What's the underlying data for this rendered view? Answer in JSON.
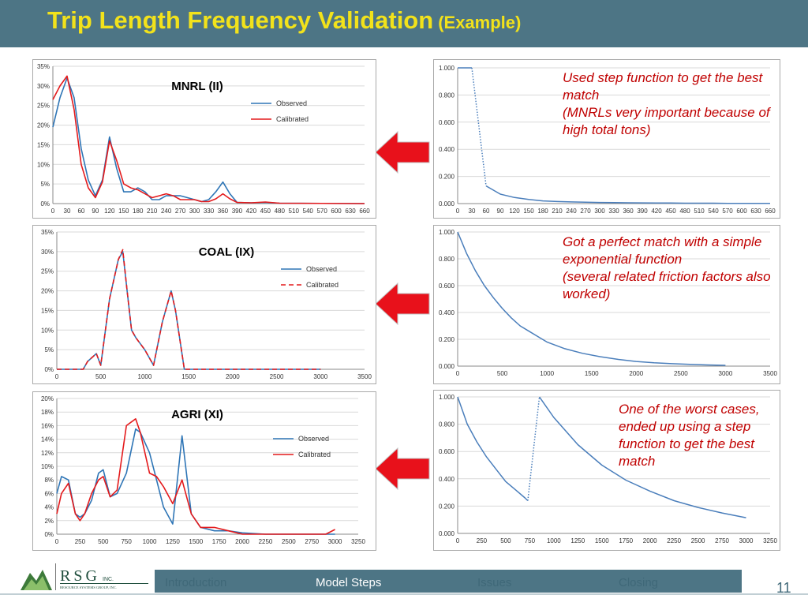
{
  "header": {
    "title": "Trip Length Frequency Validation",
    "subtitle": "(Example)"
  },
  "notes": [
    "Used step function to get the best match\n(MNRLs very important because of high total tons)",
    "Got a perfect match with a simple exponential function\n(several related friction factors also worked)",
    "One of the worst cases, ended up using a step function to get the best match"
  ],
  "footer": {
    "nav": [
      "Introduction",
      "Model Steps",
      "Issues",
      "Closing"
    ],
    "active_nav": "Model Steps",
    "page_number": "11",
    "logo_text": "RSG",
    "logo_inc": "INC.",
    "logo_sub": "RESOURCE SYSTEMS GROUP, INC."
  },
  "colors": {
    "observed": "#2e75b6",
    "calibrated": "#e41a1c",
    "friction": "#4a7ebb",
    "header": "#4d7585",
    "title": "#f2e21b",
    "note": "#c00000",
    "arrow": "#e8111b"
  },
  "chart_data": [
    {
      "type": "line",
      "title": "MNRL (II)",
      "xticks": [
        "0",
        "30",
        "60",
        "90",
        "120",
        "150",
        "180",
        "210",
        "240",
        "270",
        "300",
        "330",
        "360",
        "390",
        "420",
        "450",
        "480",
        "510",
        "540",
        "570",
        "600",
        "630",
        "660"
      ],
      "yticks": [
        "0%",
        "5%",
        "10%",
        "15%",
        "20%",
        "25%",
        "30%",
        "35%"
      ],
      "xlim": [
        0,
        660
      ],
      "ylim": [
        0,
        35
      ],
      "legend": "right",
      "series": [
        {
          "name": "Observed",
          "style": "solid",
          "x": [
            0,
            15,
            30,
            45,
            60,
            75,
            90,
            105,
            120,
            135,
            150,
            165,
            180,
            195,
            210,
            225,
            240,
            255,
            270,
            285,
            300,
            315,
            330,
            345,
            360,
            375,
            390,
            420,
            450,
            480,
            660
          ],
          "y": [
            19.5,
            27,
            32,
            27,
            14,
            6,
            2,
            6,
            17,
            9,
            3,
            3,
            4,
            3,
            1,
            1,
            2,
            2,
            2,
            1.5,
            1,
            0.5,
            1,
            3,
            5.5,
            2.5,
            0.3,
            0.2,
            0.3,
            0.1,
            0
          ]
        },
        {
          "name": "Calibrated",
          "style": "solid",
          "x": [
            0,
            15,
            30,
            45,
            60,
            75,
            90,
            105,
            120,
            135,
            150,
            165,
            180,
            195,
            210,
            225,
            240,
            255,
            270,
            285,
            300,
            315,
            330,
            345,
            360,
            375,
            390,
            420,
            450,
            480,
            660
          ],
          "y": [
            26.5,
            30,
            32.5,
            24,
            10,
            4,
            1.5,
            5.5,
            16,
            11,
            5,
            4,
            3.5,
            2.5,
            1.5,
            2,
            2.5,
            2,
            1,
            1,
            1,
            0.5,
            0.5,
            1.2,
            2.5,
            1.2,
            0.3,
            0.2,
            0.4,
            0.1,
            0
          ]
        }
      ]
    },
    {
      "type": "line",
      "title": "COAL (IX)",
      "xticks": [
        "0",
        "500",
        "1000",
        "1500",
        "2000",
        "2500",
        "3000",
        "3500"
      ],
      "yticks": [
        "0%",
        "5%",
        "10%",
        "15%",
        "20%",
        "25%",
        "30%",
        "35%"
      ],
      "xlim": [
        0,
        3500
      ],
      "ylim": [
        0,
        35
      ],
      "legend": "right",
      "series": [
        {
          "name": "Observed",
          "style": "solid",
          "x": [
            0,
            150,
            300,
            350,
            450,
            500,
            600,
            700,
            750,
            800,
            850,
            900,
            1000,
            1100,
            1200,
            1300,
            1350,
            1450,
            1500,
            2000,
            2500,
            3000
          ],
          "y": [
            0,
            0,
            0,
            2,
            4,
            1,
            18,
            28,
            30,
            20,
            10,
            8,
            5,
            1,
            12,
            20,
            15,
            0,
            0,
            0,
            0,
            0
          ]
        },
        {
          "name": "Calibrated",
          "style": "dashed",
          "x": [
            0,
            150,
            300,
            350,
            450,
            500,
            600,
            700,
            750,
            800,
            850,
            900,
            1000,
            1100,
            1200,
            1300,
            1350,
            1450,
            1500,
            2000,
            2500,
            3000
          ],
          "y": [
            0,
            0,
            0,
            2,
            4,
            1,
            18,
            28,
            30.5,
            20,
            10,
            8,
            5,
            1,
            12,
            20,
            15,
            0,
            0,
            0,
            0,
            0
          ]
        }
      ]
    },
    {
      "type": "line",
      "title": "AGRI (XI)",
      "xticks": [
        "0",
        "250",
        "500",
        "750",
        "1000",
        "1250",
        "1500",
        "1750",
        "2000",
        "2250",
        "2500",
        "2750",
        "3000",
        "3250"
      ],
      "yticks": [
        "0%",
        "2%",
        "4%",
        "6%",
        "8%",
        "10%",
        "12%",
        "14%",
        "16%",
        "18%",
        "20%"
      ],
      "xlim": [
        0,
        3250
      ],
      "ylim": [
        0,
        20
      ],
      "legend": "right",
      "series": [
        {
          "name": "Observed",
          "style": "solid",
          "x": [
            0,
            50,
            125,
            200,
            250,
            300,
            375,
            450,
            500,
            575,
            650,
            750,
            850,
            900,
            1000,
            1075,
            1150,
            1250,
            1350,
            1450,
            1550,
            1700,
            1850,
            2000,
            2250,
            2500,
            2750,
            3000
          ],
          "y": [
            6,
            8.5,
            8,
            3,
            2.5,
            3,
            5,
            9,
            9.5,
            5.5,
            6,
            9,
            15.5,
            15,
            12,
            8,
            4,
            1.5,
            14.5,
            3,
            1,
            0.5,
            0.5,
            0.2,
            0,
            0,
            0,
            0
          ]
        },
        {
          "name": "Calibrated",
          "style": "solid",
          "x": [
            0,
            50,
            125,
            200,
            250,
            300,
            375,
            450,
            500,
            575,
            650,
            750,
            850,
            900,
            1000,
            1075,
            1150,
            1250,
            1350,
            1450,
            1550,
            1700,
            1850,
            2000,
            2250,
            2500,
            2750,
            2900,
            3000
          ],
          "y": [
            3,
            6,
            7.5,
            3,
            2,
            3,
            6,
            8,
            8.5,
            5.5,
            6.5,
            16,
            17,
            15,
            9,
            8.5,
            7,
            4.5,
            8,
            3,
            1,
            1,
            0.5,
            0,
            0,
            0,
            0,
            0,
            0.7
          ]
        }
      ]
    },
    {
      "type": "line",
      "title": "",
      "xticks": [
        "0",
        "30",
        "60",
        "90",
        "120",
        "150",
        "180",
        "210",
        "240",
        "270",
        "300",
        "330",
        "360",
        "390",
        "420",
        "450",
        "480",
        "510",
        "540",
        "570",
        "600",
        "630",
        "660"
      ],
      "yticks": [
        "0.000",
        "0.200",
        "0.400",
        "0.600",
        "0.800",
        "1.000"
      ],
      "xlim": [
        0,
        660
      ],
      "ylim": [
        0,
        1
      ],
      "series": [
        {
          "name": "",
          "style": "solid",
          "x": [
            0,
            10,
            20,
            30
          ],
          "y": [
            1,
            1,
            1,
            1
          ]
        },
        {
          "name": "",
          "style": "dotted",
          "x": [
            30,
            60
          ],
          "y": [
            1,
            0.13
          ]
        },
        {
          "name": "",
          "style": "solid",
          "x": [
            60,
            90,
            120,
            150,
            180,
            210,
            240,
            270,
            300,
            330,
            360,
            390,
            420,
            450,
            480,
            510,
            540,
            570,
            600,
            630,
            660
          ],
          "y": [
            0.13,
            0.07,
            0.045,
            0.03,
            0.02,
            0.015,
            0.012,
            0.01,
            0.008,
            0.007,
            0.006,
            0.005,
            0.004,
            0.004,
            0.003,
            0.003,
            0.003,
            0.002,
            0.002,
            0.002,
            0.002
          ]
        }
      ]
    },
    {
      "type": "line",
      "title": "",
      "xticks": [
        "0",
        "500",
        "1000",
        "1500",
        "2000",
        "2500",
        "3000",
        "3500"
      ],
      "yticks": [
        "0.000",
        "0.200",
        "0.400",
        "0.600",
        "0.800",
        "1.000"
      ],
      "xlim": [
        0,
        3500
      ],
      "ylim": [
        0,
        1
      ],
      "series": [
        {
          "name": "",
          "style": "solid",
          "x": [
            0,
            100,
            200,
            300,
            400,
            500,
            600,
            700,
            800,
            900,
            1000,
            1200,
            1400,
            1600,
            1800,
            2000,
            2200,
            2400,
            2600,
            2800,
            3000
          ],
          "y": [
            1,
            0.84,
            0.71,
            0.6,
            0.51,
            0.43,
            0.36,
            0.3,
            0.26,
            0.22,
            0.18,
            0.13,
            0.095,
            0.07,
            0.05,
            0.035,
            0.025,
            0.018,
            0.013,
            0.009,
            0.006
          ]
        }
      ]
    },
    {
      "type": "line",
      "title": "",
      "xticks": [
        "0",
        "250",
        "500",
        "750",
        "1000",
        "1250",
        "1500",
        "1750",
        "2000",
        "2250",
        "2500",
        "2750",
        "3000",
        "3250"
      ],
      "yticks": [
        "0.000",
        "0.200",
        "0.400",
        "0.600",
        "0.800",
        "1.000"
      ],
      "xlim": [
        0,
        3250
      ],
      "ylim": [
        0,
        1
      ],
      "series": [
        {
          "name": "",
          "style": "solid",
          "x": [
            0,
            50,
            100,
            200,
            300,
            400,
            500,
            600,
            700,
            730
          ],
          "y": [
            1,
            0.9,
            0.8,
            0.67,
            0.56,
            0.47,
            0.38,
            0.32,
            0.26,
            0.24
          ]
        },
        {
          "name": "",
          "style": "dotted",
          "x": [
            730,
            850
          ],
          "y": [
            0.24,
            1
          ]
        },
        {
          "name": "",
          "style": "solid",
          "x": [
            850,
            1000,
            1250,
            1500,
            1750,
            2000,
            2250,
            2500,
            2750,
            3000
          ],
          "y": [
            1,
            0.85,
            0.65,
            0.5,
            0.39,
            0.31,
            0.24,
            0.19,
            0.15,
            0.115
          ]
        }
      ]
    }
  ]
}
